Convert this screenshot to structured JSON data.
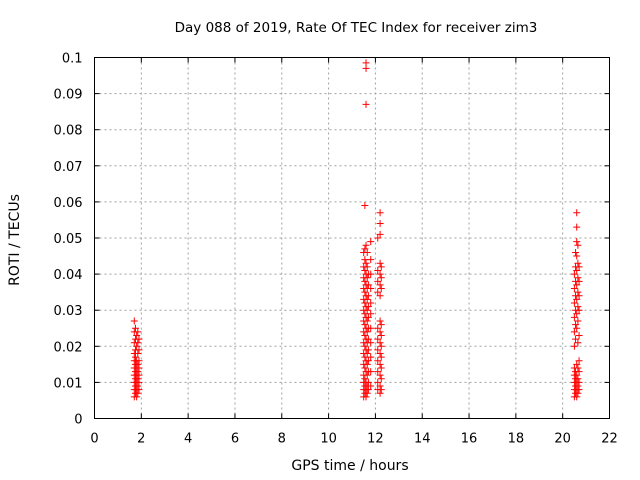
{
  "chart_data": {
    "type": "scatter",
    "title": "Day 088 of 2019, Rate Of TEC Index for receiver zim3",
    "xlabel": "GPS time / hours",
    "ylabel": "ROTI / TECUs",
    "xlim": [
      0,
      22
    ],
    "ylim": [
      0,
      0.1
    ],
    "x_ticks": [
      "0",
      "2",
      "4",
      "6",
      "8",
      "10",
      "12",
      "14",
      "16",
      "18",
      "20",
      "22"
    ],
    "y_ticks": [
      "0",
      "0.01",
      "0.02",
      "0.03",
      "0.04",
      "0.05",
      "0.06",
      "0.07",
      "0.08",
      "0.09",
      "0.1"
    ],
    "grid": true,
    "marker": "plus",
    "marker_color": "#ff0000",
    "points": [
      [
        1.7,
        0.006
      ],
      [
        1.7,
        0.008
      ],
      [
        1.7,
        0.01
      ],
      [
        1.7,
        0.012
      ],
      [
        1.7,
        0.014
      ],
      [
        1.7,
        0.016
      ],
      [
        1.7,
        0.018
      ],
      [
        1.7,
        0.021
      ],
      [
        1.7,
        0.024
      ],
      [
        1.7,
        0.027
      ],
      [
        1.75,
        0.007
      ],
      [
        1.75,
        0.009
      ],
      [
        1.75,
        0.011
      ],
      [
        1.75,
        0.013
      ],
      [
        1.75,
        0.015
      ],
      [
        1.75,
        0.017
      ],
      [
        1.75,
        0.019
      ],
      [
        1.75,
        0.022
      ],
      [
        1.75,
        0.025
      ],
      [
        1.8,
        0.006
      ],
      [
        1.8,
        0.008
      ],
      [
        1.8,
        0.01
      ],
      [
        1.8,
        0.012
      ],
      [
        1.8,
        0.014
      ],
      [
        1.8,
        0.016
      ],
      [
        1.8,
        0.02
      ],
      [
        1.8,
        0.023
      ],
      [
        1.85,
        0.007
      ],
      [
        1.85,
        0.009
      ],
      [
        1.85,
        0.011
      ],
      [
        1.85,
        0.013
      ],
      [
        1.85,
        0.015
      ],
      [
        1.85,
        0.018
      ],
      [
        1.85,
        0.021
      ],
      [
        1.85,
        0.024
      ],
      [
        1.9,
        0.008
      ],
      [
        1.9,
        0.01
      ],
      [
        1.9,
        0.012
      ],
      [
        1.9,
        0.014
      ],
      [
        1.9,
        0.016
      ],
      [
        1.9,
        0.019
      ],
      [
        1.9,
        0.022
      ],
      [
        11.5,
        0.006
      ],
      [
        11.5,
        0.008
      ],
      [
        11.5,
        0.01
      ],
      [
        11.5,
        0.012
      ],
      [
        11.5,
        0.015
      ],
      [
        11.5,
        0.018
      ],
      [
        11.5,
        0.021
      ],
      [
        11.5,
        0.024
      ],
      [
        11.5,
        0.027
      ],
      [
        11.5,
        0.03
      ],
      [
        11.5,
        0.033
      ],
      [
        11.5,
        0.036
      ],
      [
        11.5,
        0.039
      ],
      [
        11.5,
        0.042
      ],
      [
        11.5,
        0.046
      ],
      [
        11.55,
        0.007
      ],
      [
        11.55,
        0.009
      ],
      [
        11.55,
        0.011
      ],
      [
        11.55,
        0.014
      ],
      [
        11.55,
        0.017
      ],
      [
        11.55,
        0.02
      ],
      [
        11.55,
        0.023
      ],
      [
        11.55,
        0.026
      ],
      [
        11.55,
        0.029
      ],
      [
        11.55,
        0.032
      ],
      [
        11.55,
        0.035
      ],
      [
        11.55,
        0.038
      ],
      [
        11.55,
        0.041
      ],
      [
        11.55,
        0.044
      ],
      [
        11.55,
        0.047
      ],
      [
        11.55,
        0.059
      ],
      [
        11.6,
        0.006
      ],
      [
        11.6,
        0.008
      ],
      [
        11.6,
        0.01
      ],
      [
        11.6,
        0.013
      ],
      [
        11.6,
        0.016
      ],
      [
        11.6,
        0.019
      ],
      [
        11.6,
        0.022
      ],
      [
        11.6,
        0.025
      ],
      [
        11.6,
        0.028
      ],
      [
        11.6,
        0.031
      ],
      [
        11.6,
        0.034
      ],
      [
        11.6,
        0.037
      ],
      [
        11.6,
        0.04
      ],
      [
        11.6,
        0.043
      ],
      [
        11.6,
        0.048
      ],
      [
        11.6,
        0.087
      ],
      [
        11.6,
        0.097
      ],
      [
        11.6,
        0.0985
      ],
      [
        11.65,
        0.007
      ],
      [
        11.65,
        0.009
      ],
      [
        11.65,
        0.012
      ],
      [
        11.65,
        0.015
      ],
      [
        11.65,
        0.018
      ],
      [
        11.65,
        0.021
      ],
      [
        11.65,
        0.024
      ],
      [
        11.65,
        0.027
      ],
      [
        11.65,
        0.03
      ],
      [
        11.65,
        0.033
      ],
      [
        11.65,
        0.036
      ],
      [
        11.65,
        0.039
      ],
      [
        11.65,
        0.042
      ],
      [
        11.65,
        0.046
      ],
      [
        11.7,
        0.008
      ],
      [
        11.7,
        0.01
      ],
      [
        11.7,
        0.013
      ],
      [
        11.7,
        0.016
      ],
      [
        11.7,
        0.019
      ],
      [
        11.7,
        0.022
      ],
      [
        11.7,
        0.025
      ],
      [
        11.7,
        0.028
      ],
      [
        11.7,
        0.031
      ],
      [
        11.7,
        0.034
      ],
      [
        11.7,
        0.037
      ],
      [
        11.7,
        0.04
      ],
      [
        11.8,
        0.009
      ],
      [
        11.8,
        0.013
      ],
      [
        11.8,
        0.017
      ],
      [
        11.8,
        0.021
      ],
      [
        11.8,
        0.025
      ],
      [
        11.8,
        0.029
      ],
      [
        11.8,
        0.032
      ],
      [
        11.8,
        0.036
      ],
      [
        11.8,
        0.04
      ],
      [
        11.8,
        0.044
      ],
      [
        11.8,
        0.049
      ],
      [
        12.1,
        0.008
      ],
      [
        12.1,
        0.01
      ],
      [
        12.1,
        0.013
      ],
      [
        12.1,
        0.016
      ],
      [
        12.1,
        0.019
      ],
      [
        12.1,
        0.022
      ],
      [
        12.1,
        0.025
      ],
      [
        12.1,
        0.035
      ],
      [
        12.1,
        0.038
      ],
      [
        12.1,
        0.041
      ],
      [
        12.1,
        0.05
      ],
      [
        12.2,
        0.007
      ],
      [
        12.2,
        0.009
      ],
      [
        12.2,
        0.012
      ],
      [
        12.2,
        0.015
      ],
      [
        12.2,
        0.018
      ],
      [
        12.2,
        0.021
      ],
      [
        12.2,
        0.024
      ],
      [
        12.2,
        0.027
      ],
      [
        12.2,
        0.034
      ],
      [
        12.2,
        0.037
      ],
      [
        12.2,
        0.04
      ],
      [
        12.2,
        0.043
      ],
      [
        12.2,
        0.051
      ],
      [
        12.2,
        0.054
      ],
      [
        12.2,
        0.057
      ],
      [
        12.25,
        0.008
      ],
      [
        12.25,
        0.011
      ],
      [
        12.25,
        0.014
      ],
      [
        12.25,
        0.017
      ],
      [
        12.25,
        0.02
      ],
      [
        12.25,
        0.023
      ],
      [
        12.25,
        0.026
      ],
      [
        12.25,
        0.036
      ],
      [
        12.25,
        0.039
      ],
      [
        12.25,
        0.042
      ],
      [
        20.5,
        0.006
      ],
      [
        20.5,
        0.008
      ],
      [
        20.5,
        0.01
      ],
      [
        20.5,
        0.012
      ],
      [
        20.5,
        0.014
      ],
      [
        20.5,
        0.02
      ],
      [
        20.5,
        0.024
      ],
      [
        20.5,
        0.028
      ],
      [
        20.5,
        0.032
      ],
      [
        20.5,
        0.036
      ],
      [
        20.5,
        0.04
      ],
      [
        20.55,
        0.007
      ],
      [
        20.55,
        0.009
      ],
      [
        20.55,
        0.011
      ],
      [
        20.55,
        0.013
      ],
      [
        20.55,
        0.022
      ],
      [
        20.55,
        0.026
      ],
      [
        20.55,
        0.03
      ],
      [
        20.55,
        0.034
      ],
      [
        20.55,
        0.038
      ],
      [
        20.55,
        0.042
      ],
      [
        20.55,
        0.046
      ],
      [
        20.6,
        0.006
      ],
      [
        20.6,
        0.008
      ],
      [
        20.6,
        0.01
      ],
      [
        20.6,
        0.012
      ],
      [
        20.6,
        0.015
      ],
      [
        20.6,
        0.025
      ],
      [
        20.6,
        0.029
      ],
      [
        20.6,
        0.033
      ],
      [
        20.6,
        0.037
      ],
      [
        20.6,
        0.041
      ],
      [
        20.6,
        0.045
      ],
      [
        20.6,
        0.049
      ],
      [
        20.6,
        0.053
      ],
      [
        20.6,
        0.057
      ],
      [
        20.65,
        0.007
      ],
      [
        20.65,
        0.009
      ],
      [
        20.65,
        0.011
      ],
      [
        20.65,
        0.014
      ],
      [
        20.65,
        0.021
      ],
      [
        20.65,
        0.027
      ],
      [
        20.65,
        0.031
      ],
      [
        20.65,
        0.035
      ],
      [
        20.65,
        0.039
      ],
      [
        20.65,
        0.043
      ],
      [
        20.65,
        0.048
      ],
      [
        20.7,
        0.008
      ],
      [
        20.7,
        0.01
      ],
      [
        20.7,
        0.013
      ],
      [
        20.7,
        0.016
      ],
      [
        20.7,
        0.023
      ],
      [
        20.7,
        0.03
      ],
      [
        20.7,
        0.034
      ],
      [
        20.7,
        0.038
      ],
      [
        20.7,
        0.042
      ]
    ]
  }
}
